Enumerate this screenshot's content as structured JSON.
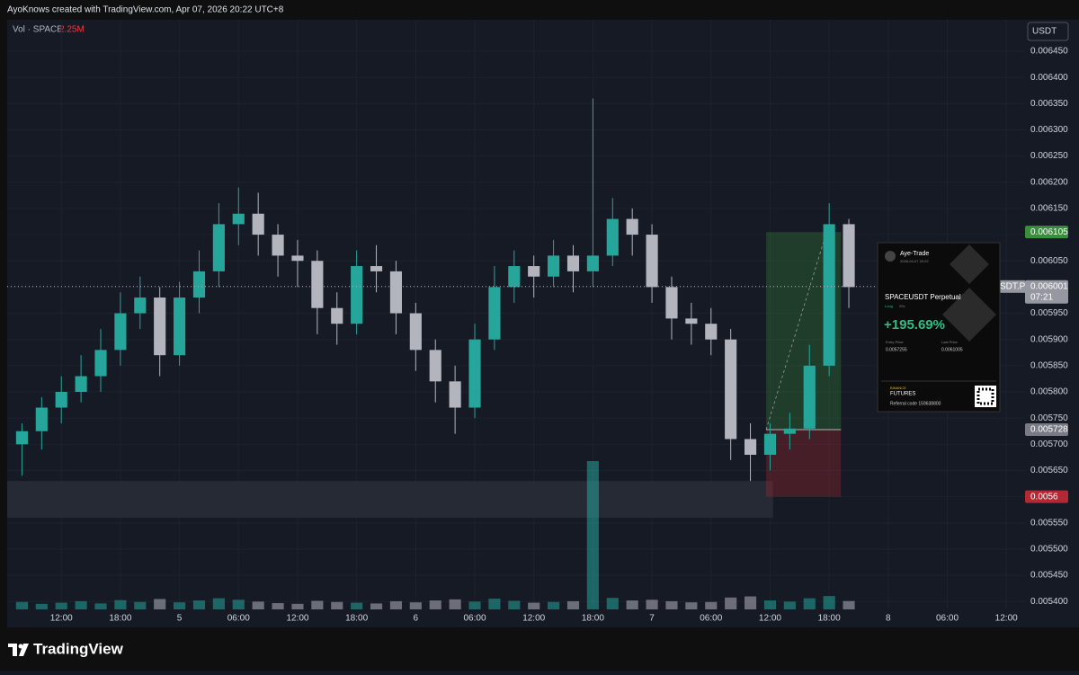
{
  "header": {
    "text": "AyoKnows created with TradingView.com, Apr 07, 2026 20:22 UTC+8"
  },
  "chart_data": {
    "type": "candlestick",
    "legend_label": "Vol · SPACE",
    "legend_value": "2.25M",
    "currency": "USDT",
    "up_color": "#26a69a",
    "down_color": "#b2b5be",
    "grid": true,
    "x": [
      8,
      10,
      12,
      14,
      16,
      18,
      20,
      22,
      24,
      26,
      28,
      30,
      32,
      34,
      36,
      38,
      40,
      42,
      44,
      46,
      48,
      50,
      52,
      54,
      56,
      58,
      60,
      62,
      64,
      66,
      68,
      70,
      72,
      74,
      76,
      78,
      80,
      82,
      84,
      86,
      88,
      90,
      92
    ],
    "open": [
      0.0057,
      0.005725,
      0.00577,
      0.0058,
      0.00583,
      0.00588,
      0.00595,
      0.00598,
      0.00587,
      0.00598,
      0.00603,
      0.00612,
      0.00614,
      0.0061,
      0.00606,
      0.00605,
      0.00596,
      0.00593,
      0.00604,
      0.00603,
      0.00595,
      0.00588,
      0.00582,
      0.00577,
      0.0059,
      0.006,
      0.00604,
      0.00602,
      0.00606,
      0.00603,
      0.00606,
      0.00613,
      0.0061,
      0.006,
      0.00594,
      0.00593,
      0.0059,
      0.00571,
      0.00568,
      0.00572,
      0.00573,
      0.00585,
      0.00612
    ],
    "high": [
      0.00574,
      0.00579,
      0.00583,
      0.00587,
      0.00592,
      0.00599,
      0.00602,
      0.006,
      0.00601,
      0.00607,
      0.00616,
      0.00619,
      0.00618,
      0.00612,
      0.00609,
      0.00607,
      0.00599,
      0.00607,
      0.00608,
      0.00605,
      0.00597,
      0.0059,
      0.00585,
      0.00593,
      0.00604,
      0.00607,
      0.00606,
      0.00609,
      0.00608,
      0.00636,
      0.00617,
      0.00615,
      0.00612,
      0.00602,
      0.00597,
      0.00596,
      0.00592,
      0.00574,
      0.00574,
      0.00576,
      0.00589,
      0.00616,
      0.00613
    ],
    "low": [
      0.00564,
      0.00569,
      0.00574,
      0.00578,
      0.0058,
      0.00585,
      0.00592,
      0.00583,
      0.00585,
      0.00595,
      0.006,
      0.00608,
      0.00606,
      0.00602,
      0.006,
      0.00591,
      0.00589,
      0.00591,
      0.00599,
      0.00591,
      0.00584,
      0.00578,
      0.00572,
      0.00575,
      0.00588,
      0.00597,
      0.00598,
      0.006,
      0.00599,
      0.006,
      0.00604,
      0.00606,
      0.00597,
      0.0059,
      0.00589,
      0.00587,
      0.00567,
      0.00563,
      0.00565,
      0.00569,
      0.00571,
      0.00583,
      0.00596
    ],
    "close": [
      0.005725,
      0.00577,
      0.0058,
      0.00583,
      0.00588,
      0.00595,
      0.00598,
      0.00587,
      0.00598,
      0.00603,
      0.00612,
      0.00614,
      0.0061,
      0.00606,
      0.00605,
      0.00596,
      0.00593,
      0.00604,
      0.00603,
      0.00595,
      0.00588,
      0.00582,
      0.00577,
      0.0059,
      0.006,
      0.00604,
      0.00602,
      0.00606,
      0.00603,
      0.00606,
      0.00613,
      0.0061,
      0.006,
      0.00594,
      0.00593,
      0.0059,
      0.00571,
      0.00568,
      0.00572,
      0.00573,
      0.00585,
      0.00612,
      0.006
    ],
    "volume": [
      2,
      1.5,
      1.8,
      2.2,
      1.6,
      2.5,
      2,
      2.8,
      1.9,
      2.4,
      3,
      2.6,
      2.1,
      1.7,
      1.5,
      2.3,
      2,
      1.8,
      1.6,
      2.2,
      1.9,
      2.4,
      2.7,
      2.1,
      2.9,
      2.3,
      1.8,
      2,
      2.2,
      40,
      3.1,
      2.4,
      2.6,
      2.2,
      1.9,
      2,
      3.2,
      3.5,
      2.4,
      2.1,
      3,
      3.6,
      2.25
    ],
    "volume_lim": [
      0,
      40
    ],
    "xlim": [
      6.5,
      109.9
    ],
    "xticks": [
      {
        "value": 12,
        "label": "12:00"
      },
      {
        "value": 18,
        "label": "18:00"
      },
      {
        "value": 24,
        "label": "5"
      },
      {
        "value": 30,
        "label": "06:00"
      },
      {
        "value": 36,
        "label": "12:00"
      },
      {
        "value": 42,
        "label": "18:00"
      },
      {
        "value": 48,
        "label": "6"
      },
      {
        "value": 54,
        "label": "06:00"
      },
      {
        "value": 60,
        "label": "12:00"
      },
      {
        "value": 66,
        "label": "18:00"
      },
      {
        "value": 72,
        "label": "7"
      },
      {
        "value": 78,
        "label": "06:00"
      },
      {
        "value": 84,
        "label": "12:00"
      },
      {
        "value": 90,
        "label": "18:00"
      },
      {
        "value": 96,
        "label": "8"
      },
      {
        "value": 102,
        "label": "06:00"
      },
      {
        "value": 108,
        "label": "12:00"
      }
    ],
    "ylim": [
      0.005385,
      0.00651
    ],
    "yticks": [
      {
        "value": 0.0054,
        "label": "0.005400"
      },
      {
        "value": 0.00545,
        "label": "0.005450"
      },
      {
        "value": 0.0055,
        "label": "0.005500"
      },
      {
        "value": 0.00555,
        "label": "0.005550"
      },
      {
        "value": 0.0056,
        "label": "0.005600"
      },
      {
        "value": 0.00565,
        "label": "0.005650"
      },
      {
        "value": 0.0057,
        "label": "0.005700"
      },
      {
        "value": 0.00575,
        "label": "0.005750"
      },
      {
        "value": 0.0058,
        "label": "0.005800"
      },
      {
        "value": 0.00585,
        "label": "0.005850"
      },
      {
        "value": 0.0059,
        "label": "0.005900"
      },
      {
        "value": 0.00595,
        "label": "0.005950"
      },
      {
        "value": 0.006,
        "label": "0.006000"
      },
      {
        "value": 0.00605,
        "label": "0.006050"
      },
      {
        "value": 0.0061,
        "label": "0.006100"
      },
      {
        "value": 0.00615,
        "label": "0.006150"
      },
      {
        "value": 0.0062,
        "label": "0.006200"
      },
      {
        "value": 0.00625,
        "label": "0.006250"
      },
      {
        "value": 0.0063,
        "label": "0.006300"
      },
      {
        "value": 0.00635,
        "label": "0.006350"
      },
      {
        "value": 0.0064,
        "label": "0.006400"
      },
      {
        "value": 0.00645,
        "label": "0.006450"
      }
    ],
    "current_price": {
      "value": 0.006001,
      "label": "0.006001",
      "countdown": "07:21",
      "symbol": "SDT.P"
    },
    "zone": {
      "from": 0.00556,
      "to": 0.00563,
      "x": [
        6.5,
        84.3
      ],
      "color": "#2a2e39"
    },
    "position": {
      "x": [
        83.6,
        91.2
      ],
      "target": {
        "value": 0.006105,
        "label": "0.006105",
        "color": "#388e3c"
      },
      "entry": {
        "value": 0.005728,
        "label": "0.005728",
        "color": "#787b86"
      },
      "stop": {
        "value": 0.0056,
        "label": "0.0056",
        "color": "#b22833"
      }
    }
  },
  "card": {
    "name": "Aye-Trade",
    "date": "2026-04-07 20:22",
    "symbol": "SPACEUSDT Perpetual",
    "side": "Long",
    "leverage": "20x",
    "pnl": "+195.69%",
    "entry_label": "Entry Price",
    "entry": "0.0057255",
    "last_label": "Last Price",
    "last": "0.0061005",
    "exchange": "BINANCE",
    "product": "FUTURES",
    "referral": "Referral code 159638800"
  },
  "footer": {
    "brand": "TradingView"
  }
}
